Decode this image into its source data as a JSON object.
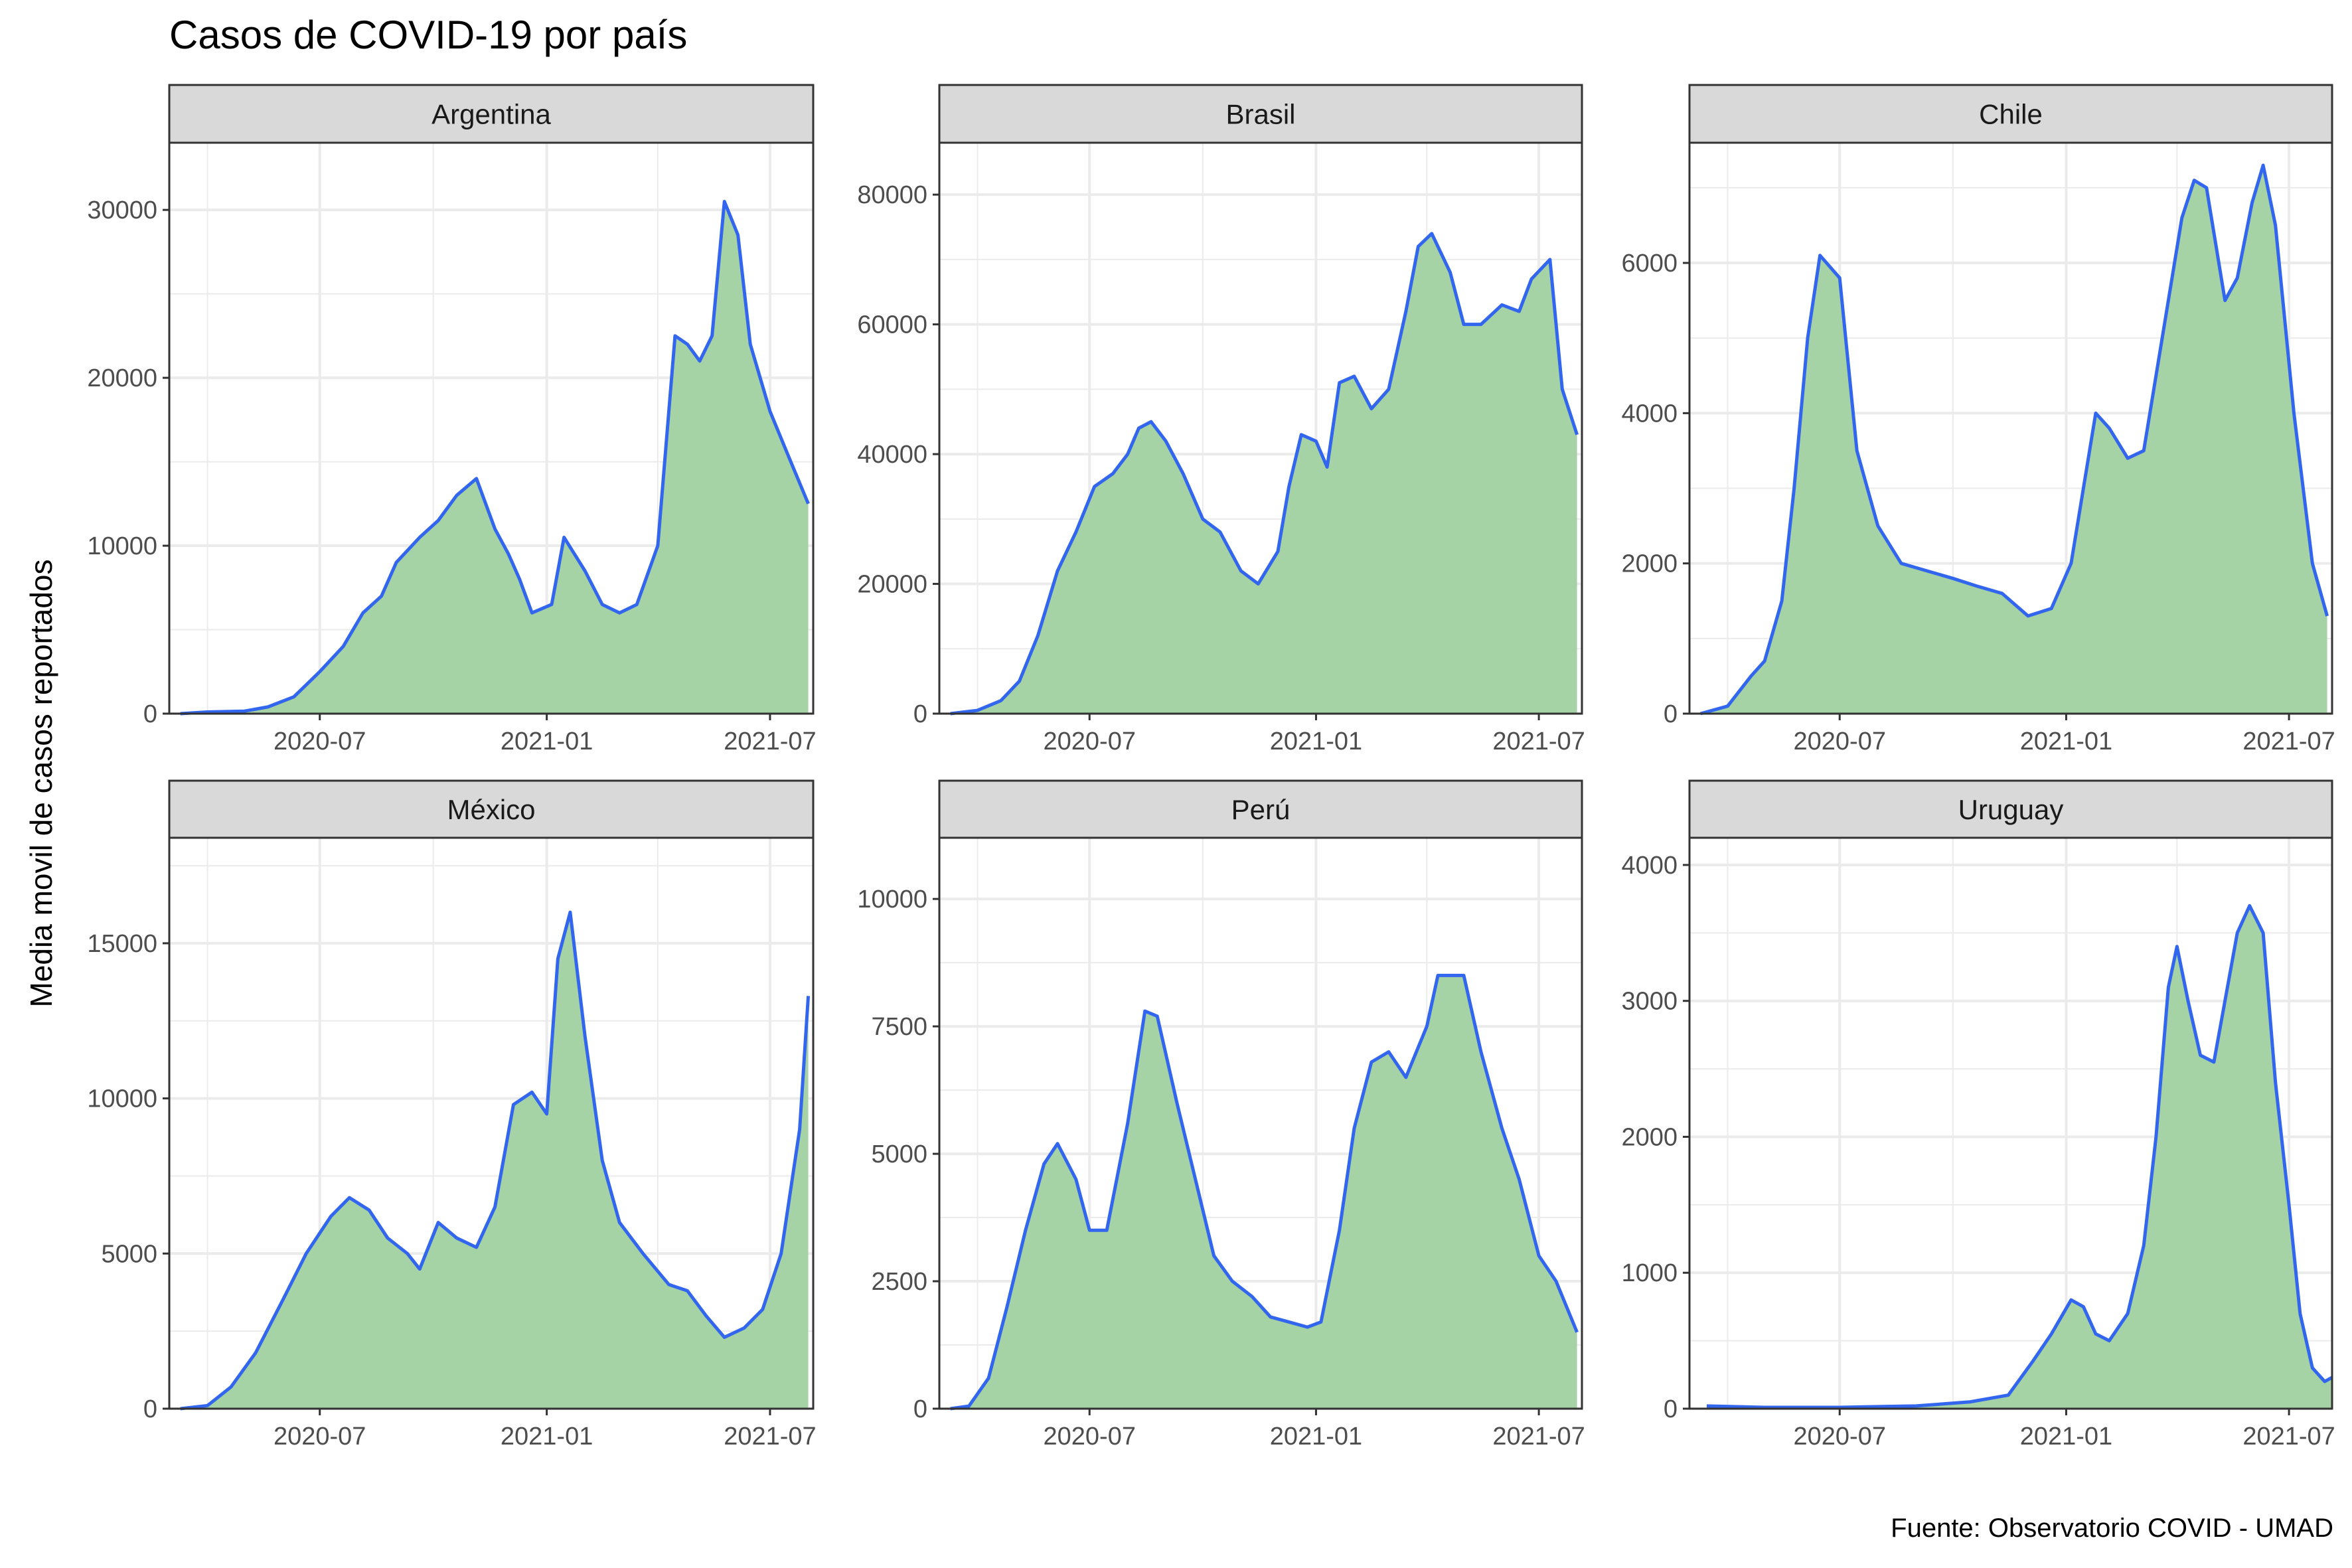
{
  "title": "Casos de COVID-19 por país",
  "ylabel": "Media movil de casos reportados",
  "caption": "Fuente: Observatorio COVID - UMAD",
  "colors": {
    "bars": "#a6d3a6",
    "line": "#3366ee",
    "strip": "#d9d9d9",
    "grid": "#ebebeb"
  },
  "chart_data": [
    {
      "type": "area",
      "facet": "Argentina",
      "x_ticks": [
        "2020-07",
        "2021-01",
        "2021-07"
      ],
      "y_ticks": [
        "0",
        "10000",
        "20000",
        "30000"
      ],
      "ylim": [
        0,
        34000
      ],
      "xlim": [
        "2020-03-01",
        "2021-08-05"
      ],
      "dates": [
        "2020-03-10",
        "2020-04-01",
        "2020-05-01",
        "2020-05-20",
        "2020-06-10",
        "2020-07-01",
        "2020-07-20",
        "2020-08-05",
        "2020-08-20",
        "2020-09-01",
        "2020-09-20",
        "2020-10-05",
        "2020-10-20",
        "2020-11-05",
        "2020-11-20",
        "2020-12-01",
        "2020-12-10",
        "2020-12-20",
        "2021-01-05",
        "2021-01-15",
        "2021-02-01",
        "2021-02-15",
        "2021-03-01",
        "2021-03-15",
        "2021-04-01",
        "2021-04-15",
        "2021-04-25",
        "2021-05-05",
        "2021-05-15",
        "2021-05-25",
        "2021-06-05",
        "2021-06-15",
        "2021-07-01",
        "2021-07-15",
        "2021-08-01"
      ],
      "values": [
        0,
        100,
        150,
        400,
        1000,
        2500,
        4000,
        6000,
        7000,
        9000,
        10500,
        11500,
        13000,
        14000,
        11000,
        9500,
        8000,
        6000,
        6500,
        10500,
        8500,
        6500,
        6000,
        6500,
        10000,
        22500,
        22000,
        21000,
        22500,
        30500,
        28500,
        22000,
        18000,
        15500,
        12500
      ]
    },
    {
      "type": "area",
      "facet": "Brasil",
      "x_ticks": [
        "2020-07",
        "2021-01",
        "2021-07"
      ],
      "y_ticks": [
        "0",
        "20000",
        "40000",
        "60000",
        "80000"
      ],
      "ylim": [
        0,
        88000
      ],
      "xlim": [
        "2020-03-01",
        "2021-08-05"
      ],
      "dates": [
        "2020-03-10",
        "2020-04-01",
        "2020-04-20",
        "2020-05-05",
        "2020-05-20",
        "2020-06-05",
        "2020-06-20",
        "2020-07-05",
        "2020-07-20",
        "2020-08-01",
        "2020-08-10",
        "2020-08-20",
        "2020-09-01",
        "2020-09-15",
        "2020-10-01",
        "2020-10-15",
        "2020-11-01",
        "2020-11-15",
        "2020-12-01",
        "2020-12-10",
        "2020-12-20",
        "2021-01-01",
        "2021-01-10",
        "2021-01-20",
        "2021-02-01",
        "2021-02-15",
        "2021-03-01",
        "2021-03-15",
        "2021-03-25",
        "2021-04-05",
        "2021-04-20",
        "2021-05-01",
        "2021-05-15",
        "2021-06-01",
        "2021-06-15",
        "2021-06-25",
        "2021-07-10",
        "2021-07-20",
        "2021-08-01"
      ],
      "values": [
        0,
        500,
        2000,
        5000,
        12000,
        22000,
        28000,
        35000,
        37000,
        40000,
        44000,
        45000,
        42000,
        37000,
        30000,
        28000,
        22000,
        20000,
        25000,
        35000,
        43000,
        42000,
        38000,
        51000,
        52000,
        47000,
        50000,
        62000,
        72000,
        74000,
        68000,
        60000,
        60000,
        63000,
        62000,
        67000,
        70000,
        50000,
        43000
      ]
    },
    {
      "type": "area",
      "facet": "Chile",
      "x_ticks": [
        "2020-07",
        "2021-01",
        "2021-07"
      ],
      "y_ticks": [
        "0",
        "2000",
        "4000",
        "6000"
      ],
      "ylim": [
        0,
        7600
      ],
      "xlim": [
        "2020-03-01",
        "2021-08-05"
      ],
      "dates": [
        "2020-03-10",
        "2020-04-01",
        "2020-04-20",
        "2020-05-01",
        "2020-05-15",
        "2020-05-25",
        "2020-06-05",
        "2020-06-15",
        "2020-07-01",
        "2020-07-15",
        "2020-08-01",
        "2020-08-20",
        "2020-09-10",
        "2020-10-01",
        "2020-10-20",
        "2020-11-10",
        "2020-12-01",
        "2020-12-20",
        "2021-01-05",
        "2021-01-15",
        "2021-01-25",
        "2021-02-05",
        "2021-02-20",
        "2021-03-05",
        "2021-03-20",
        "2021-04-05",
        "2021-04-15",
        "2021-04-25",
        "2021-05-10",
        "2021-05-20",
        "2021-06-01",
        "2021-06-10",
        "2021-06-20",
        "2021-07-05",
        "2021-07-20",
        "2021-08-01"
      ],
      "values": [
        0,
        100,
        500,
        700,
        1500,
        3000,
        5000,
        6100,
        5800,
        3500,
        2500,
        2000,
        1900,
        1800,
        1700,
        1600,
        1300,
        1400,
        2000,
        3000,
        4000,
        3800,
        3400,
        3500,
        5000,
        6600,
        7100,
        7000,
        5500,
        5800,
        6800,
        7300,
        6500,
        4000,
        2000,
        1300
      ]
    },
    {
      "type": "area",
      "facet": "México",
      "x_ticks": [
        "2020-07",
        "2021-01",
        "2021-07"
      ],
      "y_ticks": [
        "0",
        "5000",
        "10000",
        "15000"
      ],
      "ylim": [
        0,
        18400
      ],
      "xlim": [
        "2020-03-01",
        "2021-08-05"
      ],
      "dates": [
        "2020-03-10",
        "2020-04-01",
        "2020-04-20",
        "2020-05-10",
        "2020-06-01",
        "2020-06-20",
        "2020-07-10",
        "2020-07-25",
        "2020-08-10",
        "2020-08-25",
        "2020-09-10",
        "2020-09-20",
        "2020-10-05",
        "2020-10-20",
        "2020-11-05",
        "2020-11-20",
        "2020-12-05",
        "2020-12-20",
        "2021-01-01",
        "2021-01-10",
        "2021-01-20",
        "2021-02-01",
        "2021-02-15",
        "2021-03-01",
        "2021-03-20",
        "2021-04-10",
        "2021-04-25",
        "2021-05-10",
        "2021-05-25",
        "2021-06-10",
        "2021-06-25",
        "2021-07-10",
        "2021-07-25",
        "2021-08-01"
      ],
      "values": [
        0,
        100,
        700,
        1800,
        3500,
        5000,
        6200,
        6800,
        6400,
        5500,
        5000,
        4500,
        6000,
        5500,
        5200,
        6500,
        9800,
        10200,
        9500,
        14500,
        16000,
        12000,
        8000,
        6000,
        5000,
        4000,
        3800,
        3000,
        2300,
        2600,
        3200,
        5000,
        9000,
        13300
      ]
    },
    {
      "type": "area",
      "facet": "Perú",
      "x_ticks": [
        "2020-07",
        "2021-01",
        "2021-07"
      ],
      "y_ticks": [
        "0",
        "2500",
        "5000",
        "7500",
        "10000"
      ],
      "ylim": [
        0,
        11200
      ],
      "xlim": [
        "2020-03-01",
        "2021-08-05"
      ],
      "dates": [
        "2020-03-10",
        "2020-03-25",
        "2020-04-10",
        "2020-04-25",
        "2020-05-10",
        "2020-05-25",
        "2020-06-05",
        "2020-06-20",
        "2020-07-01",
        "2020-07-15",
        "2020-08-01",
        "2020-08-15",
        "2020-08-25",
        "2020-09-10",
        "2020-09-25",
        "2020-10-10",
        "2020-10-25",
        "2020-11-10",
        "2020-11-25",
        "2020-12-10",
        "2020-12-25",
        "2021-01-05",
        "2021-01-20",
        "2021-02-01",
        "2021-02-15",
        "2021-03-01",
        "2021-03-15",
        "2021-04-01",
        "2021-04-10",
        "2021-04-20",
        "2021-05-01",
        "2021-05-15",
        "2021-06-01",
        "2021-06-15",
        "2021-07-01",
        "2021-07-15",
        "2021-08-01"
      ],
      "values": [
        0,
        50,
        600,
        2000,
        3500,
        4800,
        5200,
        4500,
        3500,
        3500,
        5600,
        7800,
        7700,
        6000,
        4500,
        3000,
        2500,
        2200,
        1800,
        1700,
        1600,
        1700,
        3500,
        5500,
        6800,
        7000,
        6500,
        7500,
        8500,
        8500,
        8500,
        7000,
        5500,
        4500,
        3000,
        2500,
        1500
      ]
    },
    {
      "type": "area",
      "facet": "Uruguay",
      "x_ticks": [
        "2020-07",
        "2021-01",
        "2021-07"
      ],
      "y_ticks": [
        "0",
        "1000",
        "2000",
        "3000",
        "4000"
      ],
      "ylim": [
        0,
        4200
      ],
      "xlim": [
        "2020-03-01",
        "2021-08-05"
      ],
      "dates": [
        "2020-03-15",
        "2020-05-01",
        "2020-07-01",
        "2020-09-01",
        "2020-10-15",
        "2020-11-15",
        "2020-12-05",
        "2020-12-20",
        "2021-01-05",
        "2021-01-15",
        "2021-01-25",
        "2021-02-05",
        "2021-02-20",
        "2021-03-05",
        "2021-03-15",
        "2021-03-25",
        "2021-04-01",
        "2021-04-10",
        "2021-04-20",
        "2021-05-01",
        "2021-05-10",
        "2021-05-20",
        "2021-05-30",
        "2021-06-10",
        "2021-06-20",
        "2021-07-01",
        "2021-07-10",
        "2021-07-20",
        "2021-07-30",
        "2021-08-05"
      ],
      "values": [
        20,
        10,
        10,
        20,
        50,
        100,
        350,
        550,
        800,
        750,
        550,
        500,
        700,
        1200,
        2000,
        3100,
        3400,
        3000,
        2600,
        2550,
        3000,
        3500,
        3700,
        3500,
        2400,
        1500,
        700,
        300,
        200,
        230
      ]
    }
  ]
}
